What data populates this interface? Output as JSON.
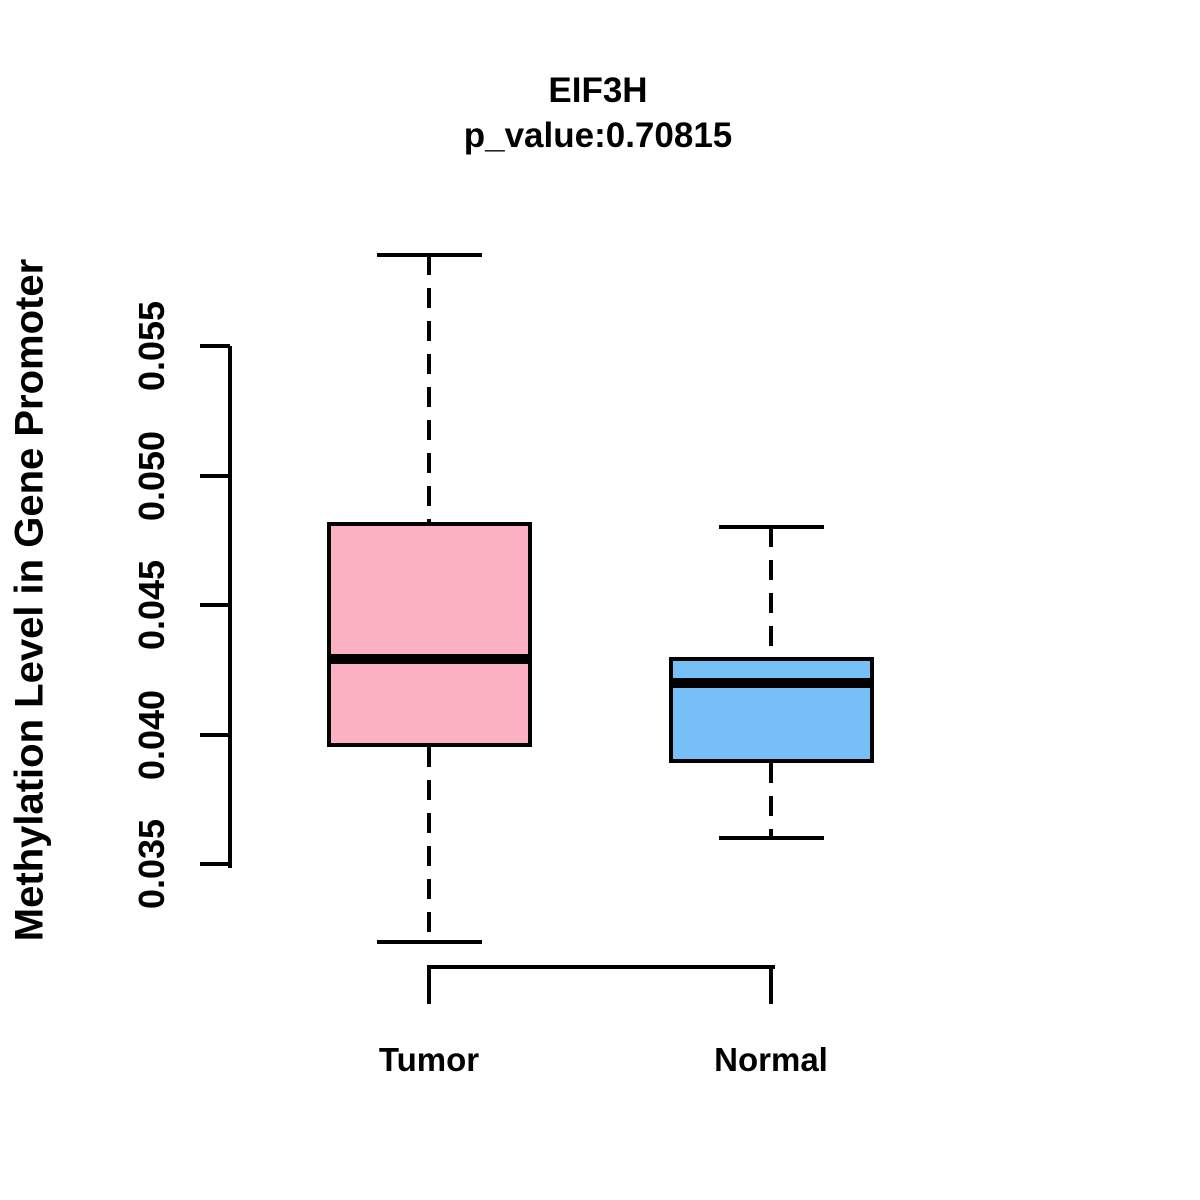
{
  "chart_data": {
    "type": "boxplot",
    "title": "EIF3H",
    "subtitle": "p_value:0.70815",
    "ylabel": "Methylation Level in Gene Promoter",
    "xlabel": "",
    "categories": [
      "Tumor",
      "Normal"
    ],
    "series": [
      {
        "name": "Tumor",
        "color": "#FCB1C3",
        "whisker_low": 0.032,
        "q1": 0.0395,
        "median": 0.0429,
        "q3": 0.0482,
        "whisker_high": 0.0585,
        "outliers": []
      },
      {
        "name": "Normal",
        "color": "#76BFF7",
        "whisker_low": 0.036,
        "q1": 0.0389,
        "median": 0.042,
        "q3": 0.043,
        "whisker_high": 0.048,
        "outliers": []
      }
    ],
    "ylim": [
      0.035,
      0.055
    ],
    "yticks": [
      0.035,
      0.04,
      0.045,
      0.05,
      0.055
    ],
    "grid": false,
    "legend": "none",
    "line_color": "#000000",
    "background": "#ffffff"
  }
}
